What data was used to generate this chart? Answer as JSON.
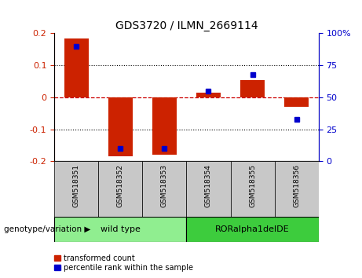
{
  "title": "GDS3720 / ILMN_2669114",
  "samples": [
    "GSM518351",
    "GSM518352",
    "GSM518353",
    "GSM518354",
    "GSM518355",
    "GSM518356"
  ],
  "transformed_count": [
    0.185,
    -0.185,
    -0.18,
    0.015,
    0.055,
    -0.03
  ],
  "percentile_rank_pct": [
    90,
    10,
    10,
    55,
    68,
    33
  ],
  "ylim_left": [
    -0.2,
    0.2
  ],
  "ylim_right": [
    0,
    100
  ],
  "yticks_left": [
    -0.2,
    -0.1,
    0,
    0.1,
    0.2
  ],
  "yticks_right": [
    0,
    25,
    50,
    75,
    100
  ],
  "groups": [
    {
      "label": "wild type",
      "indices": [
        0,
        1,
        2
      ],
      "color": "#90EE90"
    },
    {
      "label": "RORalpha1delDE",
      "indices": [
        3,
        4,
        5
      ],
      "color": "#3DCC3D"
    }
  ],
  "bar_color_red": "#CC2200",
  "bar_color_blue": "#0000CC",
  "zero_line_color": "#CC0000",
  "bg_xticklabels": "#C8C8C8",
  "legend_red_label": "transformed count",
  "legend_blue_label": "percentile rank within the sample",
  "genotype_label": "genotype/variation",
  "bar_width": 0.55,
  "title_fontsize": 10,
  "tick_fontsize": 8,
  "sample_fontsize": 6.5,
  "group_fontsize": 8,
  "legend_fontsize": 7
}
